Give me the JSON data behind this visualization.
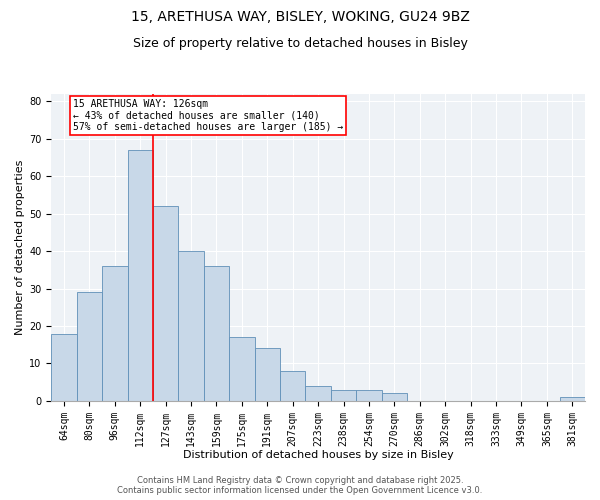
{
  "title1": "15, ARETHUSA WAY, BISLEY, WOKING, GU24 9BZ",
  "title2": "Size of property relative to detached houses in Bisley",
  "xlabel": "Distribution of detached houses by size in Bisley",
  "ylabel": "Number of detached properties",
  "bar_labels": [
    "64sqm",
    "80sqm",
    "96sqm",
    "112sqm",
    "127sqm",
    "143sqm",
    "159sqm",
    "175sqm",
    "191sqm",
    "207sqm",
    "223sqm",
    "238sqm",
    "254sqm",
    "270sqm",
    "286sqm",
    "302sqm",
    "318sqm",
    "333sqm",
    "349sqm",
    "365sqm",
    "381sqm"
  ],
  "bar_values": [
    18,
    29,
    36,
    67,
    52,
    40,
    36,
    17,
    14,
    8,
    4,
    3,
    3,
    2,
    0,
    0,
    0,
    0,
    0,
    0,
    1
  ],
  "bar_color": "#c8d8e8",
  "bar_edge_color": "#6090b8",
  "red_line_x": 3.5,
  "annotation_text": "15 ARETHUSA WAY: 126sqm\n← 43% of detached houses are smaller (140)\n57% of semi-detached houses are larger (185) →",
  "annotation_box_color": "white",
  "annotation_box_edge_color": "red",
  "ylim": [
    0,
    82
  ],
  "yticks": [
    0,
    10,
    20,
    30,
    40,
    50,
    60,
    70,
    80
  ],
  "background_color": "#eef2f6",
  "footer_text": "Contains HM Land Registry data © Crown copyright and database right 2025.\nContains public sector information licensed under the Open Government Licence v3.0.",
  "title1_fontsize": 10,
  "title2_fontsize": 9,
  "xlabel_fontsize": 8,
  "ylabel_fontsize": 8,
  "tick_fontsize": 7,
  "annotation_fontsize": 7,
  "footer_fontsize": 6
}
